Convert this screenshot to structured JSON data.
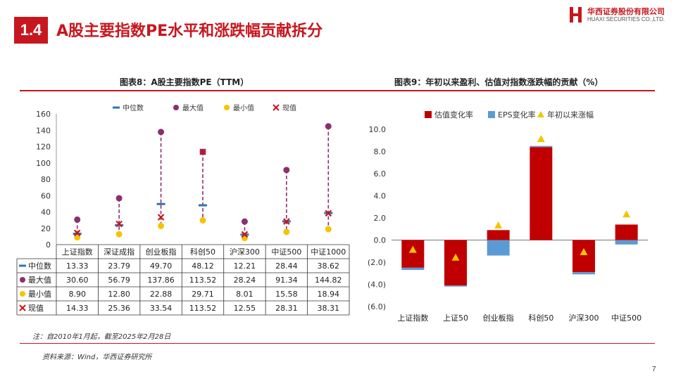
{
  "section": {
    "number": "1.4",
    "title": "A股主要指数PE水平和涨跌幅贡献拆分"
  },
  "logo": {
    "cn": "华西证券股份有限公司",
    "en": "HUAXI SECURITIES CO.,LTD."
  },
  "page_number": "7",
  "notes": {
    "date_note": "注：自2010年1月起，截至2025年2月28日",
    "source": "资料来源：Wind，华西证券研究所"
  },
  "colors": {
    "accent": "#c8161e",
    "purple": "#8b2f6e",
    "yellow": "#f5c400",
    "blue": "#4a90d9",
    "bar_red": "#c00000",
    "eps_blue": "#5b9bd5",
    "triangle": "#f5c400"
  },
  "chart_data": [
    {
      "type": "scatter",
      "title": "图表8：A股主要指数PE（TTM）",
      "categories": [
        "上证指数",
        "深证成指",
        "创业板指",
        "科创50",
        "沪深300",
        "中证500",
        "中证1000"
      ],
      "ylim": [
        0,
        160
      ],
      "yticks": [
        "0",
        "20",
        "40",
        "60",
        "80",
        "100",
        "120",
        "140",
        "160"
      ],
      "legend_position": "top",
      "series": [
        {
          "name": "中位数",
          "marker": "dash",
          "color": "#2e75b6",
          "values": [
            13.33,
            23.79,
            49.7,
            48.12,
            12.21,
            28.44,
            38.62
          ],
          "labels": [
            "13.33",
            "23.79",
            "49.70",
            "48.12",
            "12.21",
            "28.44",
            "38.62"
          ]
        },
        {
          "name": "最大值",
          "marker": "circle",
          "color": "#8b2f6e",
          "values": [
            30.6,
            56.79,
            137.86,
            113.52,
            28.24,
            91.34,
            144.82
          ],
          "labels": [
            "30.60",
            "56.79",
            "137.86",
            "113.52",
            "28.24",
            "91.34",
            "144.82"
          ]
        },
        {
          "name": "最小值",
          "marker": "circle",
          "color": "#f5c400",
          "values": [
            8.9,
            12.8,
            22.88,
            29.71,
            8.01,
            15.58,
            18.94
          ],
          "labels": [
            "8.90",
            "12.80",
            "22.88",
            "29.71",
            "8.01",
            "15.58",
            "18.94"
          ]
        },
        {
          "name": "现值",
          "marker": "x",
          "color": "#c8161e",
          "values": [
            14.33,
            25.36,
            33.54,
            113.52,
            12.55,
            28.31,
            38.31
          ],
          "labels": [
            "14.33",
            "25.36",
            "33.54",
            "113.52",
            "12.55",
            "28.31",
            "38.31"
          ]
        }
      ]
    },
    {
      "type": "bar",
      "title": "图表9：年初以来盈利、估值对指数涨跌幅的贡献（%）",
      "categories": [
        "上证指数",
        "上证50",
        "创业板指",
        "科创50",
        "沪深300",
        "中证500"
      ],
      "ylim": [
        -6.0,
        10.0
      ],
      "yticks": [
        "(6.0)",
        "(4.0)",
        "(2.0)",
        "0.0",
        "2.0",
        "4.0",
        "6.0",
        "8.0",
        "10.0"
      ],
      "legend_position": "top",
      "series": [
        {
          "name": "估值变化率",
          "type": "bar",
          "color": "#c00000",
          "values": [
            -2.5,
            -4.1,
            0.9,
            8.4,
            -2.9,
            1.4
          ]
        },
        {
          "name": "EPS变化率",
          "type": "bar",
          "color": "#5b9bd5",
          "values": [
            -0.2,
            -0.1,
            -1.4,
            0.1,
            -0.2,
            -0.4
          ]
        },
        {
          "name": "年初以来涨幅",
          "type": "marker",
          "marker": "triangle",
          "color": "#f5c400",
          "values": [
            -0.9,
            -1.6,
            1.3,
            9.1,
            -1.1,
            2.3
          ]
        }
      ]
    }
  ]
}
